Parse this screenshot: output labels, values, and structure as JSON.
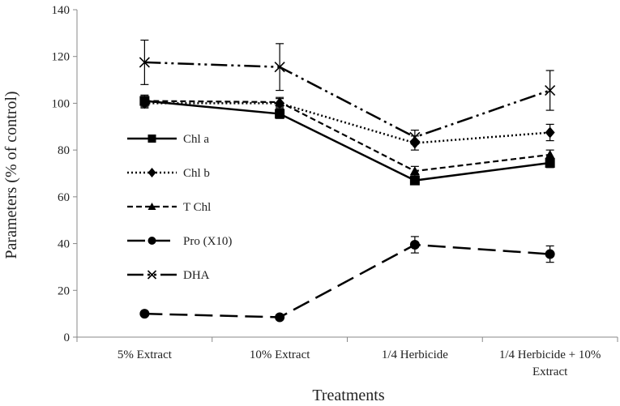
{
  "chart_data": {
    "type": "line",
    "title": "",
    "xlabel": "Treatments",
    "ylabel": "Parameters (% of control)",
    "categories": [
      "5% Extract",
      "10% Extract",
      "1/4 Herbicide",
      "1/4 Herbicide + 10% Extract"
    ],
    "category_lines": [
      [
        "5% Extract"
      ],
      [
        "10% Extract"
      ],
      [
        "1/4 Herbicide"
      ],
      [
        "1/4 Herbicide + 10%",
        "Extract"
      ]
    ],
    "ylim": [
      0,
      140
    ],
    "yticks": [
      0,
      20,
      40,
      60,
      80,
      100,
      120,
      140
    ],
    "grid": false,
    "legend_position": "left-center",
    "series": [
      {
        "name": "Chl a",
        "values": [
          101,
          95.5,
          67,
          74.5
        ],
        "errors": [
          2.5,
          2,
          1.5,
          2
        ],
        "marker": "square",
        "dash": "solid",
        "color": "#000000"
      },
      {
        "name": "Chl b",
        "values": [
          100,
          100,
          83,
          87.5
        ],
        "errors": [
          2,
          2,
          3,
          3.5
        ],
        "marker": "diamond",
        "dash": "dotted",
        "color": "#000000"
      },
      {
        "name": "T Chl",
        "values": [
          101,
          100.5,
          71,
          78
        ],
        "errors": [
          2,
          2,
          2,
          2
        ],
        "marker": "triangle",
        "dash": "dashed",
        "color": "#000000"
      },
      {
        "name": "Pro (X10)",
        "values": [
          10,
          8.5,
          39.5,
          35.5
        ],
        "errors": [
          0.5,
          0.5,
          3.5,
          3.5
        ],
        "marker": "circle",
        "dash": "longdash",
        "color": "#000000"
      },
      {
        "name": "DHA",
        "values": [
          117.5,
          115.5,
          85.5,
          105.5
        ],
        "errors": [
          9.5,
          10,
          3,
          8.5
        ],
        "marker": "x",
        "dash": "dashdotdot",
        "color": "#000000"
      }
    ]
  }
}
